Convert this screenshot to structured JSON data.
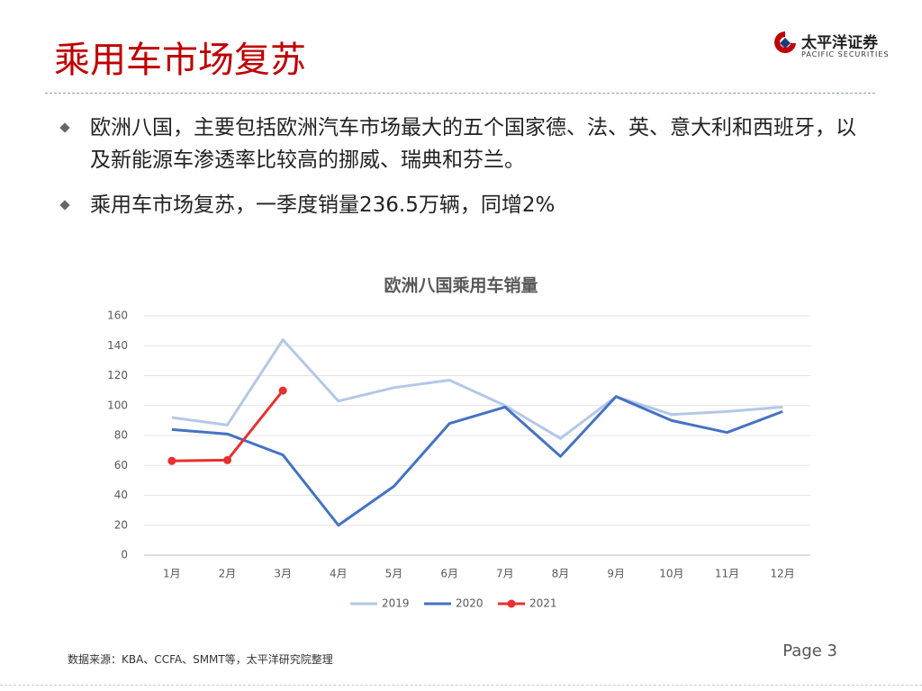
{
  "header": {
    "title": "乘用车市场复苏",
    "logo": {
      "cn": "太平洋证券",
      "en": "PACIFIC SECURITIES"
    }
  },
  "bullets": [
    "欧洲八国，主要包括欧洲汽车市场最大的五个国家德、法、英、意大利和西班牙，以及新能源车渗透率比较高的挪威、瑞典和芬兰。",
    "乘用车市场复苏，一季度销量236.5万辆，同增2%"
  ],
  "chart_data": {
    "type": "line",
    "title": "欧洲八国乘用车销量",
    "categories": [
      "1月",
      "2月",
      "3月",
      "4月",
      "5月",
      "6月",
      "7月",
      "8月",
      "9月",
      "10月",
      "11月",
      "12月"
    ],
    "series": [
      {
        "name": "2019",
        "color": "#b4c7e7",
        "values": [
          92,
          87,
          144,
          103,
          112,
          117,
          100,
          78,
          106,
          94,
          96,
          99
        ]
      },
      {
        "name": "2020",
        "color": "#4472c4",
        "values": [
          84,
          81,
          67,
          20,
          46,
          88,
          99,
          66,
          106,
          90,
          82,
          96
        ]
      },
      {
        "name": "2021",
        "color": "#e8302f",
        "markers": true,
        "values": [
          63,
          63.5,
          110,
          null,
          null,
          null,
          null,
          null,
          null,
          null,
          null,
          null
        ]
      }
    ],
    "ylim": [
      0,
      160
    ],
    "yticks": [
      0,
      20,
      40,
      60,
      80,
      100,
      120,
      140,
      160
    ],
    "grid": true,
    "legend": "bottom"
  },
  "footer": {
    "source": "数据来源：KBA、CCFA、SMMT等，太平洋研究院整理",
    "page": "Page 3"
  }
}
